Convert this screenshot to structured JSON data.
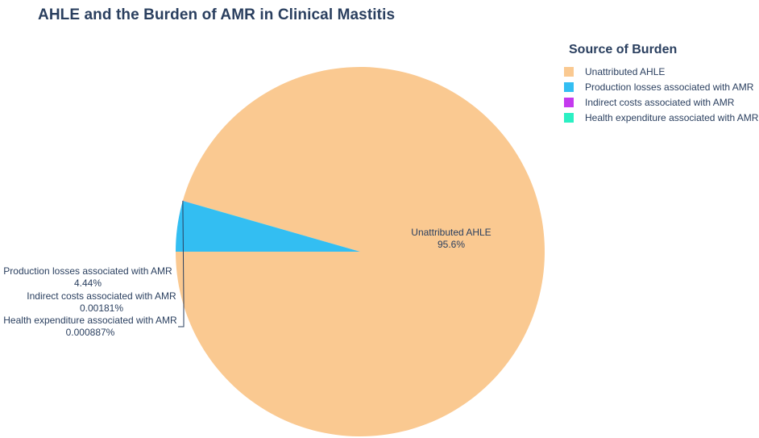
{
  "chart_data": {
    "type": "pie",
    "title": "AHLE and the Burden of AMR in Clinical Mastitis",
    "legend_title": "Source of Burden",
    "legend_position": "top-right",
    "slices": [
      {
        "label": "Unattributed AHLE",
        "percent_text": "95.6%",
        "value": 95.5573,
        "color": "#FAC991"
      },
      {
        "label": "Production losses associated with AMR",
        "percent_text": "4.44%",
        "value": 4.44,
        "color": "#33BEF2"
      },
      {
        "label": "Indirect costs associated with AMR",
        "percent_text": "0.00181%",
        "value": 0.00181,
        "color": "#C43AEE"
      },
      {
        "label": "Health expenditure associated with AMR",
        "percent_text": "0.000887%",
        "value": 0.000887,
        "color": "#2BF0C3"
      }
    ]
  }
}
